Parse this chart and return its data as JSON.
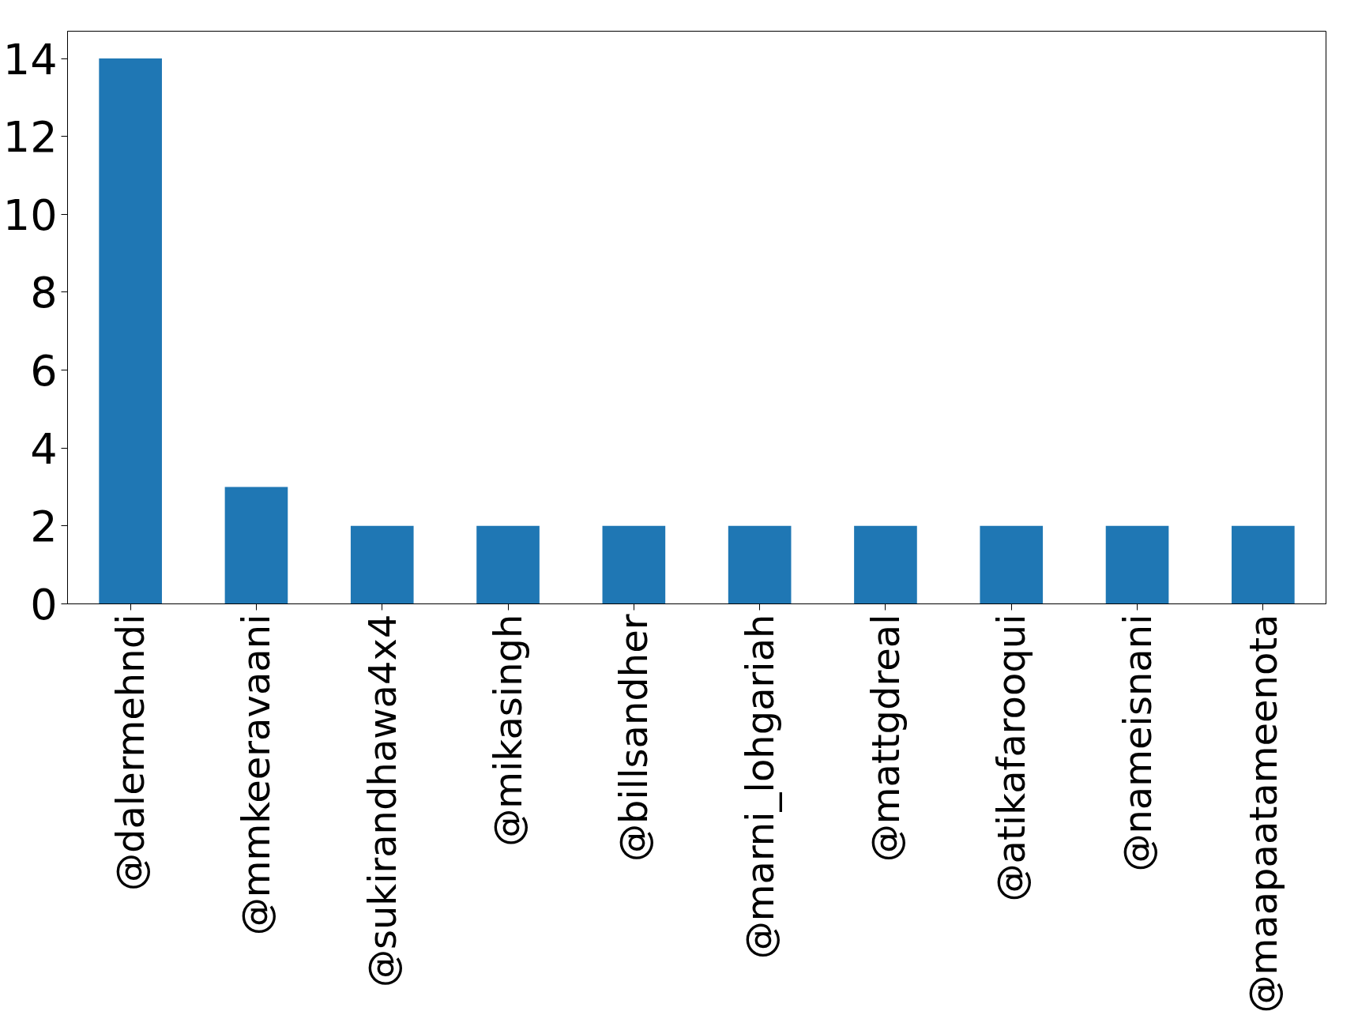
{
  "chart_data": {
    "type": "bar",
    "categories": [
      "@dalermehndi",
      "@mmkeeravaani",
      "@sukirandhawa4x4",
      "@mikasingh",
      "@billsandher",
      "@marni_lohgariah",
      "@mattgdreal",
      "@atikafarooqui",
      "@nameisnani",
      "@maapaatameenota"
    ],
    "values": [
      14,
      3,
      2,
      2,
      2,
      2,
      2,
      2,
      2,
      2
    ],
    "color": "#1f77b4",
    "ylim": [
      0,
      14.7
    ],
    "yticks": [
      0,
      2,
      4,
      6,
      8,
      10,
      12,
      14
    ],
    "grid": false
  }
}
